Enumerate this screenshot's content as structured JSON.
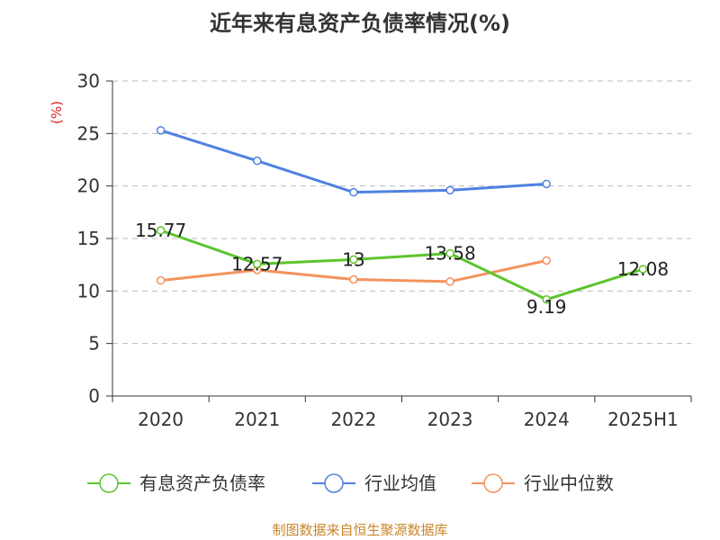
{
  "title": "近年来有息资产负债率情况(%)",
  "source": "制图数据来自恒生聚源数据库",
  "chart_data": {
    "type": "line",
    "title": "近年来有息资产负债率情况(%)",
    "ylabel": "(%)",
    "ylim": [
      0,
      30
    ],
    "yticks": [
      0,
      5,
      10,
      15,
      20,
      25,
      30
    ],
    "categories": [
      "2020",
      "2021",
      "2022",
      "2023",
      "2024",
      "2025H1"
    ],
    "grid": true,
    "legend_position": "bottom",
    "series": [
      {
        "name": "有息资产负债率",
        "color": "#5cc52e",
        "values": [
          15.77,
          12.57,
          13,
          13.58,
          9.19,
          12.08
        ],
        "labels": [
          "15.77",
          "12.57",
          "13",
          "13.58",
          "9.19",
          "12.08"
        ]
      },
      {
        "name": "行业均值",
        "color": "#4f81e0",
        "values": [
          25.3,
          22.4,
          19.4,
          19.6,
          20.2,
          null
        ]
      },
      {
        "name": "行业中位数",
        "color": "#f5925e",
        "values": [
          11.0,
          12.0,
          11.1,
          10.9,
          12.9,
          null
        ]
      }
    ]
  }
}
